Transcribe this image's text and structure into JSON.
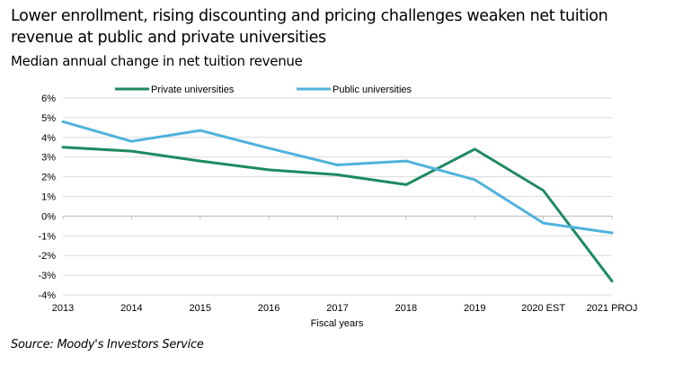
{
  "title": "Lower enrollment, rising discounting and pricing challenges weaken net tuition revenue at public and private universities",
  "subtitle": "Median annual change in net tuition revenue",
  "source": "Source: Moody's Investors Service",
  "chart_data": {
    "type": "line",
    "title": "Median annual change in net tuition revenue",
    "xlabel": "Fiscal years",
    "ylabel": "",
    "categories": [
      "2013",
      "2014",
      "2015",
      "2016",
      "2017",
      "2018",
      "2019",
      "2020 EST",
      "2021 PROJ"
    ],
    "ylim": [
      -4,
      6
    ],
    "y_ticks": [
      6,
      5,
      4,
      3,
      2,
      1,
      0,
      -1,
      -2,
      -3,
      -4
    ],
    "y_tick_labels": [
      "6%",
      "5%",
      "4%",
      "3%",
      "2%",
      "1%",
      "0%",
      "-1%",
      "-2%",
      "-3%",
      "-4%"
    ],
    "grid": true,
    "legend_position": "top",
    "series": [
      {
        "name": "Private universities",
        "color": "#1e8a5f",
        "values": [
          3.5,
          3.3,
          2.8,
          2.35,
          2.1,
          1.6,
          3.4,
          1.3,
          -3.3
        ]
      },
      {
        "name": "Public universities",
        "color": "#4fb3dc",
        "values": [
          4.8,
          3.8,
          4.35,
          3.45,
          2.6,
          2.8,
          1.85,
          -0.35,
          -0.85
        ]
      }
    ]
  }
}
